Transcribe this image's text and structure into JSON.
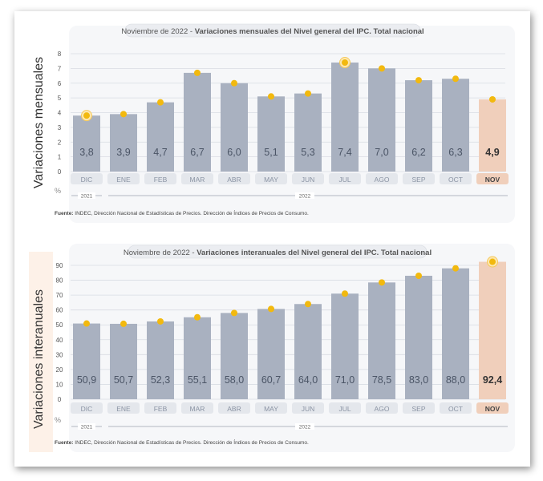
{
  "chart_data": [
    {
      "type": "bar",
      "title_prefix": "Noviembre de 2022",
      "title_main": "Variaciones mensuales del Nivel general del IPC. Total nacional",
      "ylabel": "Variaciones mensuales",
      "unit": "%",
      "categories": [
        "DIC",
        "ENE",
        "FEB",
        "MAR",
        "ABR",
        "MAY",
        "JUN",
        "JUL",
        "AGO",
        "SEP",
        "OCT",
        "NOV"
      ],
      "values": [
        3.8,
        3.9,
        4.7,
        6.7,
        6.0,
        5.1,
        5.3,
        7.4,
        7.0,
        6.2,
        6.3,
        4.9
      ],
      "value_labels": [
        "3,8",
        "3,9",
        "4,7",
        "6,7",
        "6,0",
        "5,1",
        "5,3",
        "7,4",
        "7,0",
        "6,2",
        "6,3",
        "4,9"
      ],
      "highlighted": [
        0,
        7
      ],
      "ylim": [
        0,
        8
      ],
      "yticks": [
        "0",
        "1",
        "2",
        "3",
        "4",
        "5",
        "6",
        "7",
        "8"
      ],
      "years": [
        "2021",
        "2022"
      ],
      "source_label": "Fuente:",
      "source_text": "INDEC, Dirección Nacional de Estadísticas de Precios. Dirección de Índices de Precios de Consumo.",
      "colors": {
        "bar": "#a9b1c0",
        "bar_last": "#f0cfbb",
        "marker": "#f2b90f",
        "grid": "#d8dce3"
      }
    },
    {
      "type": "bar",
      "title_prefix": "Noviembre de 2022",
      "title_main": "Variaciones interanuales del Nivel general del IPC. Total nacional",
      "ylabel": "Variaciones interanuales",
      "unit": "%",
      "categories": [
        "DIC",
        "ENE",
        "FEB",
        "MAR",
        "ABR",
        "MAY",
        "JUN",
        "JUL",
        "AGO",
        "SEP",
        "OCT",
        "NOV"
      ],
      "values": [
        50.9,
        50.7,
        52.3,
        55.1,
        58.0,
        60.7,
        64.0,
        71.0,
        78.5,
        83.0,
        88.0,
        92.4
      ],
      "value_labels": [
        "50,9",
        "50,7",
        "52,3",
        "55,1",
        "58,0",
        "60,7",
        "64,0",
        "71,0",
        "78,5",
        "83,0",
        "88,0",
        "92,4"
      ],
      "highlighted": [
        11
      ],
      "ylim": [
        0,
        90
      ],
      "yticks": [
        "0",
        "10",
        "20",
        "30",
        "40",
        "50",
        "60",
        "70",
        "80",
        "90"
      ],
      "years": [
        "2021",
        "2022"
      ],
      "source_label": "Fuente:",
      "source_text": "INDEC, Dirección Nacional de Estadísticas de Precios. Dirección de Índices de Precios de Consumo.",
      "colors": {
        "bar": "#a9b1c0",
        "bar_last": "#f0cfbb",
        "marker": "#f2b90f",
        "grid": "#d8dce3"
      }
    }
  ]
}
